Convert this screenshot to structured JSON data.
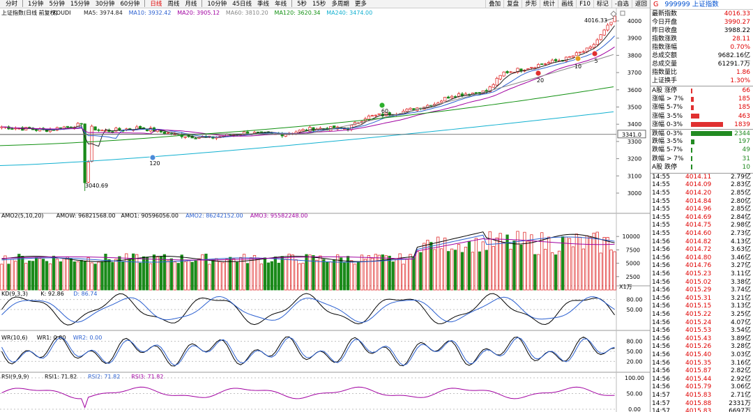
{
  "toolbar": {
    "tabs": [
      "分时",
      "1分钟",
      "5分钟",
      "15分钟",
      "30分钟",
      "60分钟",
      "日线",
      "周线",
      "月线",
      "10分钟",
      "45日线",
      "季线",
      "年线",
      "5秒",
      "15秒",
      "多周期",
      "更多"
    ],
    "active": "日线",
    "right": [
      "叠加",
      "复盘",
      "步形",
      "统计",
      "画线",
      "F10",
      "标记",
      "-自选",
      "返回"
    ]
  },
  "main": {
    "title": "上证指数(日线 前复权)",
    "indicator": "KOUDI",
    "ma": [
      {
        "label": "MA5: 3974.84",
        "color": "#222222"
      },
      {
        "label": "MA10: 3932.42",
        "color": "#2a5fd0"
      },
      {
        "label": "MA20: 3905.12",
        "color": "#a000a0"
      },
      {
        "label": "MA60: 3810.20",
        "color": "#888888"
      },
      {
        "label": "MA120: 3620.34",
        "color": "#109010"
      },
      {
        "label": "MA240: 3474.00",
        "color": "#10b0d0"
      }
    ],
    "y_ticks": [
      "4000",
      "3900",
      "3800",
      "3700",
      "3600",
      "3500",
      "3400",
      "3300",
      "3200",
      "3100",
      "3000"
    ],
    "high_label": "4016.33",
    "low_label": "3040.69",
    "cursor_price": "3341.0",
    "signals": [
      {
        "text": "120"
      },
      {
        "text": "60"
      },
      {
        "text": "20"
      },
      {
        "text": "10"
      },
      {
        "text": "5"
      }
    ]
  },
  "volume": {
    "title": "AMO2(5,10,20)",
    "items": [
      {
        "label": "AMOW: 96821568.00",
        "color": "#000000"
      },
      {
        "label": "AMO1: 90596056.00",
        "color": "#000000"
      },
      {
        "label": "AMO2: 86242152.00",
        "color": "#2a5fd0"
      },
      {
        "label": "AMO3: 95582248.00",
        "color": "#a000a0"
      }
    ],
    "y_ticks": [
      "10000",
      "7500",
      "5000",
      "2500"
    ],
    "unit": "X1万"
  },
  "kd": {
    "title": "KD(9,3,3)",
    "items": [
      {
        "label": "K: 92.86",
        "color": "#000000"
      },
      {
        "label": "D: 86.74",
        "color": "#2a5fd0"
      }
    ],
    "y_ticks": [
      "80.00",
      "50.00"
    ]
  },
  "wr": {
    "title": "WR(10,6)",
    "items": [
      {
        "label": "WR1: 0.00",
        "color": "#000000"
      },
      {
        "label": "WR2: 0.00",
        "color": "#2a5fd0"
      }
    ],
    "y_ticks": [
      "80.00",
      "50.00",
      "20.00"
    ]
  },
  "rsi": {
    "title": "RSI(9,9,9)",
    "items": [
      {
        "label": "RSI1: 71.82",
        "color": "#000000"
      },
      {
        "label": "RSI2: 71.82",
        "color": "#2a5fd0"
      },
      {
        "label": "RSI3: 71.82",
        "color": "#a000a0"
      }
    ],
    "y_ticks": [
      "100.00",
      "50.00",
      "0.00"
    ]
  },
  "panel": {
    "badge": "G",
    "code": "999999",
    "name": "上证指数",
    "quote": [
      {
        "label": "最新指数",
        "value": "4016.33",
        "red": true
      },
      {
        "label": "今日开盘",
        "value": "3990.27",
        "red": true
      },
      {
        "label": "昨日收盘",
        "value": "3988.22",
        "red": false
      },
      {
        "label": "指数涨跌",
        "value": "28.11",
        "red": true
      },
      {
        "label": "指数涨幅",
        "value": "0.70%",
        "red": true
      },
      {
        "label": "总成交额",
        "value": "9682.16亿",
        "red": false
      },
      {
        "label": "总成交量",
        "value": "61291.7万",
        "red": false
      },
      {
        "label": "指数量比",
        "value": "1.86",
        "red": true
      },
      {
        "label": "上证换手",
        "value": "1.30%",
        "red": true
      }
    ],
    "breadth": [
      {
        "label": "A股 涨停",
        "count": "66",
        "color": "#e03030",
        "frac": 0.03
      },
      {
        "label": "涨幅 > 7%",
        "count": "185",
        "color": "#e03030",
        "frac": 0.06
      },
      {
        "label": "涨幅 5-7%",
        "count": "185",
        "color": "#e03030",
        "frac": 0.06
      },
      {
        "label": "涨幅 3-5%",
        "count": "463",
        "color": "#e03030",
        "frac": 0.16
      },
      {
        "label": "涨幅 0-3%",
        "count": "1839",
        "color": "#e03030",
        "frac": 0.64
      },
      {
        "label": "跌幅 0-3%",
        "count": "2344",
        "color": "#228b22",
        "frac": 0.82
      },
      {
        "label": "跌幅 3-5%",
        "count": "197",
        "color": "#228b22",
        "frac": 0.07
      },
      {
        "label": "跌幅 5-7%",
        "count": "49",
        "color": "#228b22",
        "frac": 0.02
      },
      {
        "label": "跌幅 > 7%",
        "count": "31",
        "color": "#228b22",
        "frac": 0.01
      },
      {
        "label": "A股 跌停",
        "count": "10",
        "color": "#228b22",
        "frac": 0.005
      }
    ],
    "ticks": [
      [
        "14:55",
        "4014.11",
        "2.79亿"
      ],
      [
        "14:55",
        "4014.09",
        "2.83亿"
      ],
      [
        "14:55",
        "4014.20",
        "2.85亿"
      ],
      [
        "14:55",
        "4014.84",
        "2.80亿"
      ],
      [
        "14:55",
        "4014.96",
        "2.85亿"
      ],
      [
        "14:55",
        "4014.69",
        "2.84亿"
      ],
      [
        "14:55",
        "4014.75",
        "2.98亿"
      ],
      [
        "14:55",
        "4014.60",
        "2.73亿"
      ],
      [
        "14:56",
        "4014.82",
        "4.13亿"
      ],
      [
        "14:56",
        "4014.72",
        "3.63亿"
      ],
      [
        "14:56",
        "4014.80",
        "3.46亿"
      ],
      [
        "14:56",
        "4014.76",
        "3.27亿"
      ],
      [
        "14:56",
        "4015.23",
        "3.11亿"
      ],
      [
        "14:56",
        "4015.02",
        "3.38亿"
      ],
      [
        "14:56",
        "4015.29",
        "3.74亿"
      ],
      [
        "14:56",
        "4015.31",
        "3.21亿"
      ],
      [
        "14:56",
        "4015.15",
        "3.13亿"
      ],
      [
        "14:56",
        "4015.22",
        "3.25亿"
      ],
      [
        "14:56",
        "4015.24",
        "4.07亿"
      ],
      [
        "14:56",
        "4015.53",
        "3.54亿"
      ],
      [
        "14:56",
        "4015.43",
        "3.89亿"
      ],
      [
        "14:56",
        "4015.26",
        "3.28亿"
      ],
      [
        "14:56",
        "4015.40",
        "3.03亿"
      ],
      [
        "14:56",
        "4015.35",
        "3.16亿"
      ],
      [
        "14:56",
        "4015.87",
        "2.82亿"
      ],
      [
        "14:56",
        "4015.44",
        "2.92亿"
      ],
      [
        "14:56",
        "4015.79",
        "3.06亿"
      ],
      [
        "14:57",
        "4015.83",
        "2.71亿"
      ],
      [
        "14:57",
        "4015.88",
        "2331万"
      ],
      [
        "14:57",
        "4015.83",
        "6697万"
      ]
    ]
  }
}
